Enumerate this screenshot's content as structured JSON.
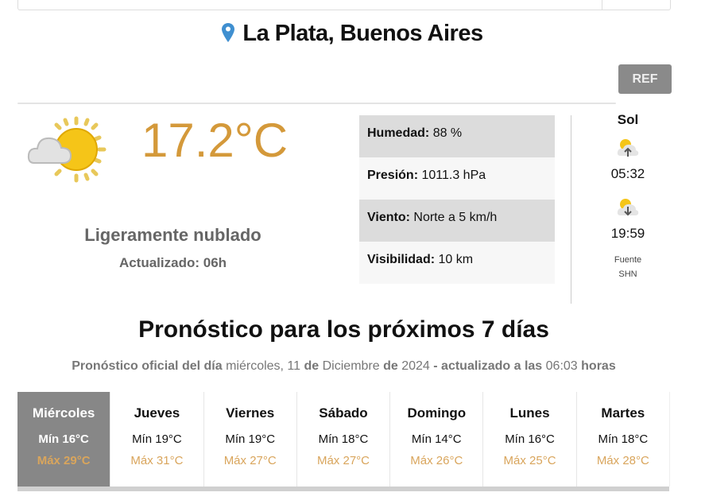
{
  "location": {
    "title": "La Plata, Buenos Aires",
    "icon": "map-pin-icon",
    "icon_color": "#3f8fd0"
  },
  "refresh_label": "REF",
  "current": {
    "temperature": "17.2°C",
    "condition": "Ligeramente nublado",
    "updated": "Actualizado: 06h",
    "icon": "partly-cloudy-icon",
    "temp_color": "#d4993a"
  },
  "stats": [
    {
      "label": "Humedad:",
      "value": "88 %"
    },
    {
      "label": "Presión:",
      "value": "1011.3 hPa"
    },
    {
      "label": "Viento:",
      "value": "Norte a 5 km/h"
    },
    {
      "label": "Visibilidad:",
      "value": "10 km"
    }
  ],
  "sun": {
    "title": "Sol",
    "sunrise": "05:32",
    "sunset": "19:59",
    "source_label": "Fuente",
    "source": "SHN"
  },
  "forecast": {
    "heading": "Pronóstico para los próximos 7 días",
    "sub": {
      "p1": "Pronóstico oficial del día",
      "date_day": "miércoles, 11",
      "p2": "de",
      "month": "Diciembre",
      "p3": "de",
      "year": "2024",
      "p4": "- actualizado a las",
      "time": "06:03",
      "p5": "horas"
    },
    "days": [
      {
        "name": "Miércoles",
        "min": "Mín 16°C",
        "max": "Máx 29°C"
      },
      {
        "name": "Jueves",
        "min": "Mín 19°C",
        "max": "Máx 31°C"
      },
      {
        "name": "Viernes",
        "min": "Mín 19°C",
        "max": "Máx 27°C"
      },
      {
        "name": "Sábado",
        "min": "Mín 18°C",
        "max": "Máx 27°C"
      },
      {
        "name": "Domingo",
        "min": "Mín 14°C",
        "max": "Máx 26°C"
      },
      {
        "name": "Lunes",
        "min": "Mín 16°C",
        "max": "Máx 25°C"
      },
      {
        "name": "Martes",
        "min": "Mín 18°C",
        "max": "Máx 28°C"
      }
    ],
    "max_color": "#d9a55c",
    "active_bg": "#878787"
  }
}
